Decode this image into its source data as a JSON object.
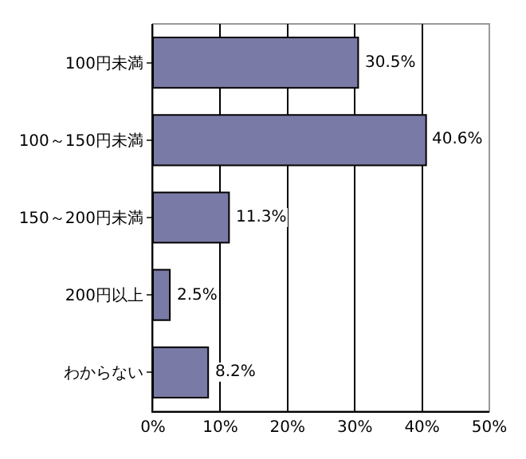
{
  "chart_data": {
    "type": "bar",
    "orientation": "horizontal",
    "categories": [
      "100円未満",
      "100～150円未満",
      "150～200円未満",
      "200円以上",
      "わからない"
    ],
    "values": [
      30.5,
      40.6,
      11.3,
      2.5,
      8.2
    ],
    "value_labels": [
      "30.5%",
      "40.6%",
      "11.3%",
      "2.5%",
      "8.2%"
    ],
    "color": "#7a7aa6",
    "xlim": [
      0,
      50
    ],
    "xticks": [
      {
        "value": 0,
        "label": "0%"
      },
      {
        "value": 10,
        "label": "10%"
      },
      {
        "value": 20,
        "label": "20%"
      },
      {
        "value": 30,
        "label": "30%"
      },
      {
        "value": 40,
        "label": "40%"
      },
      {
        "value": 50,
        "label": "50%"
      }
    ],
    "grid": "x"
  }
}
